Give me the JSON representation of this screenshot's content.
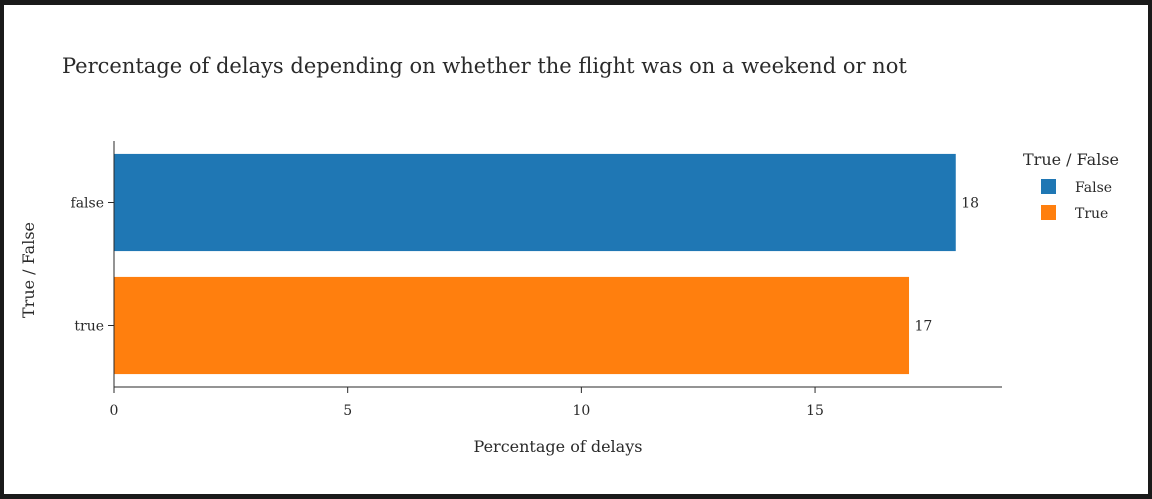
{
  "chart_data": {
    "type": "bar",
    "orientation": "horizontal",
    "title": "Percentage of delays depending on whether the flight was on a weekend or not",
    "xlabel": "Percentage of delays",
    "ylabel": "True / False",
    "categories": [
      "false",
      "true"
    ],
    "values": [
      18,
      17
    ],
    "data_labels": [
      "18",
      "17"
    ],
    "colors": [
      "#1f77b4",
      "#ff7f0e"
    ],
    "xlim": [
      0,
      19
    ],
    "xticks": [
      0,
      5,
      10,
      15
    ],
    "xtick_labels": [
      "0",
      "5",
      "10",
      "15"
    ],
    "grid": false,
    "legend": {
      "title": "True / False",
      "placement": "right",
      "entries": [
        {
          "label": "False",
          "color": "#1f77b4"
        },
        {
          "label": "True",
          "color": "#ff7f0e"
        }
      ]
    }
  }
}
